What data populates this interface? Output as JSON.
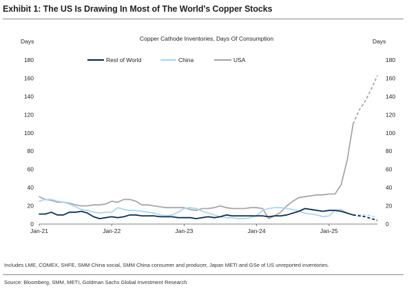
{
  "header": {
    "title": "Exhibit 1: The US Is Drawing In Most of The World’s Copper Stocks"
  },
  "footer": {
    "note": "Includes LME, COMEX, SHFE, SMM China social, SMM China consumer and producer, Japan METI and GSe of US unreported inventories.",
    "source": "Source: Bloomberg, SMM, METI, Goldman Sachs Global Investment Research"
  },
  "chart_data": {
    "type": "line",
    "title": "Copper Cathode Inventories, Days Of Consumption",
    "ylabel_left": "Days",
    "ylabel_right": "Days",
    "ylim": [
      0,
      180
    ],
    "yticks": [
      0,
      20,
      40,
      60,
      80,
      100,
      120,
      140,
      160,
      180
    ],
    "xlim": [
      "2021-01",
      "2025-09"
    ],
    "xtick_labels": [
      "Jan-21",
      "Jan-22",
      "Jan-23",
      "Jan-24",
      "Jan-25"
    ],
    "xtick_dates": [
      "2021-01",
      "2022-01",
      "2023-01",
      "2024-01",
      "2025-01"
    ],
    "legend_position": "top",
    "grid": false,
    "series": [
      {
        "name": "Rest of World",
        "color": "#0b2d52",
        "points": [
          [
            "2021-01",
            11
          ],
          [
            "2021-02",
            11
          ],
          [
            "2021-03",
            13
          ],
          [
            "2021-04",
            10
          ],
          [
            "2021-05",
            10
          ],
          [
            "2021-06",
            13
          ],
          [
            "2021-07",
            13
          ],
          [
            "2021-08",
            14
          ],
          [
            "2021-09",
            12
          ],
          [
            "2021-10",
            8
          ],
          [
            "2021-11",
            6
          ],
          [
            "2021-12",
            7
          ],
          [
            "2022-01",
            8
          ],
          [
            "2022-02",
            7
          ],
          [
            "2022-03",
            8
          ],
          [
            "2022-04",
            10
          ],
          [
            "2022-05",
            10
          ],
          [
            "2022-06",
            9
          ],
          [
            "2022-07",
            9
          ],
          [
            "2022-08",
            9
          ],
          [
            "2022-09",
            8
          ],
          [
            "2022-10",
            8
          ],
          [
            "2022-11",
            8
          ],
          [
            "2022-12",
            7
          ],
          [
            "2023-01",
            7
          ],
          [
            "2023-02",
            7
          ],
          [
            "2023-03",
            6
          ],
          [
            "2023-04",
            7
          ],
          [
            "2023-05",
            8
          ],
          [
            "2023-06",
            7
          ],
          [
            "2023-07",
            8
          ],
          [
            "2023-08",
            10
          ],
          [
            "2023-09",
            9
          ],
          [
            "2023-10",
            9
          ],
          [
            "2023-11",
            9
          ],
          [
            "2023-12",
            9
          ],
          [
            "2024-01",
            9
          ],
          [
            "2024-02",
            9
          ],
          [
            "2024-03",
            8
          ],
          [
            "2024-04",
            9
          ],
          [
            "2024-05",
            9
          ],
          [
            "2024-06",
            10
          ],
          [
            "2024-07",
            12
          ],
          [
            "2024-08",
            14
          ],
          [
            "2024-09",
            17
          ],
          [
            "2024-10",
            16
          ],
          [
            "2024-11",
            15
          ],
          [
            "2024-12",
            14
          ],
          [
            "2025-01",
            15
          ],
          [
            "2025-02",
            15
          ],
          [
            "2025-03",
            14
          ],
          [
            "2025-04",
            12
          ],
          [
            "2025-05",
            10
          ]
        ],
        "projection": [
          [
            "2025-05",
            10
          ],
          [
            "2025-06",
            9
          ],
          [
            "2025-07",
            8
          ],
          [
            "2025-08",
            6
          ],
          [
            "2025-09",
            4
          ]
        ]
      },
      {
        "name": "China",
        "color": "#a9d6f1",
        "points": [
          [
            "2021-01",
            25
          ],
          [
            "2021-02",
            27
          ],
          [
            "2021-03",
            27
          ],
          [
            "2021-04",
            25
          ],
          [
            "2021-05",
            24
          ],
          [
            "2021-06",
            22
          ],
          [
            "2021-07",
            19
          ],
          [
            "2021-08",
            16
          ],
          [
            "2021-09",
            15
          ],
          [
            "2021-10",
            13
          ],
          [
            "2021-11",
            12
          ],
          [
            "2021-12",
            13
          ],
          [
            "2022-01",
            13
          ],
          [
            "2022-02",
            18
          ],
          [
            "2022-03",
            16
          ],
          [
            "2022-04",
            15
          ],
          [
            "2022-05",
            15
          ],
          [
            "2022-06",
            14
          ],
          [
            "2022-07",
            13
          ],
          [
            "2022-08",
            12
          ],
          [
            "2022-09",
            10
          ],
          [
            "2022-10",
            9
          ],
          [
            "2022-11",
            10
          ],
          [
            "2022-12",
            13
          ],
          [
            "2023-01",
            17
          ],
          [
            "2023-02",
            18
          ],
          [
            "2023-03",
            17
          ],
          [
            "2023-04",
            14
          ],
          [
            "2023-05",
            12
          ],
          [
            "2023-06",
            10
          ],
          [
            "2023-07",
            8
          ],
          [
            "2023-08",
            7
          ],
          [
            "2023-09",
            7
          ],
          [
            "2023-10",
            6
          ],
          [
            "2023-11",
            6
          ],
          [
            "2023-12",
            7
          ],
          [
            "2024-01",
            9
          ],
          [
            "2024-02",
            15
          ],
          [
            "2024-03",
            17
          ],
          [
            "2024-04",
            18
          ],
          [
            "2024-05",
            18
          ],
          [
            "2024-06",
            17
          ],
          [
            "2024-07",
            16
          ],
          [
            "2024-08",
            14
          ],
          [
            "2024-09",
            12
          ],
          [
            "2024-10",
            11
          ],
          [
            "2024-11",
            10
          ],
          [
            "2024-12",
            8
          ],
          [
            "2025-01",
            9
          ],
          [
            "2025-02",
            15
          ],
          [
            "2025-03",
            16
          ],
          [
            "2025-04",
            12
          ],
          [
            "2025-05",
            10
          ]
        ],
        "projection": [
          [
            "2025-05",
            10
          ],
          [
            "2025-06",
            10
          ],
          [
            "2025-07",
            10
          ],
          [
            "2025-08",
            9
          ],
          [
            "2025-09",
            7
          ]
        ]
      },
      {
        "name": "USA",
        "color": "#a6a6a6",
        "points": [
          [
            "2021-01",
            30
          ],
          [
            "2021-02",
            27
          ],
          [
            "2021-03",
            26
          ],
          [
            "2021-04",
            24
          ],
          [
            "2021-05",
            24
          ],
          [
            "2021-06",
            23
          ],
          [
            "2021-07",
            21
          ],
          [
            "2021-08",
            20
          ],
          [
            "2021-09",
            20
          ],
          [
            "2021-10",
            21
          ],
          [
            "2021-11",
            21
          ],
          [
            "2021-12",
            22
          ],
          [
            "2022-01",
            25
          ],
          [
            "2022-02",
            24
          ],
          [
            "2022-03",
            27
          ],
          [
            "2022-04",
            27
          ],
          [
            "2022-05",
            25
          ],
          [
            "2022-06",
            21
          ],
          [
            "2022-07",
            21
          ],
          [
            "2022-08",
            20
          ],
          [
            "2022-09",
            19
          ],
          [
            "2022-10",
            18
          ],
          [
            "2022-11",
            18
          ],
          [
            "2022-12",
            18
          ],
          [
            "2023-01",
            18
          ],
          [
            "2023-02",
            16
          ],
          [
            "2023-03",
            15
          ],
          [
            "2023-04",
            17
          ],
          [
            "2023-05",
            17
          ],
          [
            "2023-06",
            18
          ],
          [
            "2023-07",
            20
          ],
          [
            "2023-08",
            18
          ],
          [
            "2023-09",
            17
          ],
          [
            "2023-10",
            17
          ],
          [
            "2023-11",
            17
          ],
          [
            "2023-12",
            18
          ],
          [
            "2024-01",
            18
          ],
          [
            "2024-02",
            17
          ],
          [
            "2024-03",
            6
          ],
          [
            "2024-04",
            9
          ],
          [
            "2024-05",
            13
          ],
          [
            "2024-06",
            20
          ],
          [
            "2024-07",
            25
          ],
          [
            "2024-08",
            29
          ],
          [
            "2024-09",
            30
          ],
          [
            "2024-10",
            31
          ],
          [
            "2024-11",
            32
          ],
          [
            "2024-12",
            32
          ],
          [
            "2025-01",
            33
          ],
          [
            "2025-02",
            33
          ],
          [
            "2025-03",
            43
          ],
          [
            "2025-04",
            70
          ],
          [
            "2025-05",
            110
          ]
        ],
        "projection": [
          [
            "2025-05",
            110
          ],
          [
            "2025-06",
            125
          ],
          [
            "2025-07",
            135
          ],
          [
            "2025-08",
            148
          ],
          [
            "2025-09",
            163
          ]
        ]
      }
    ]
  }
}
